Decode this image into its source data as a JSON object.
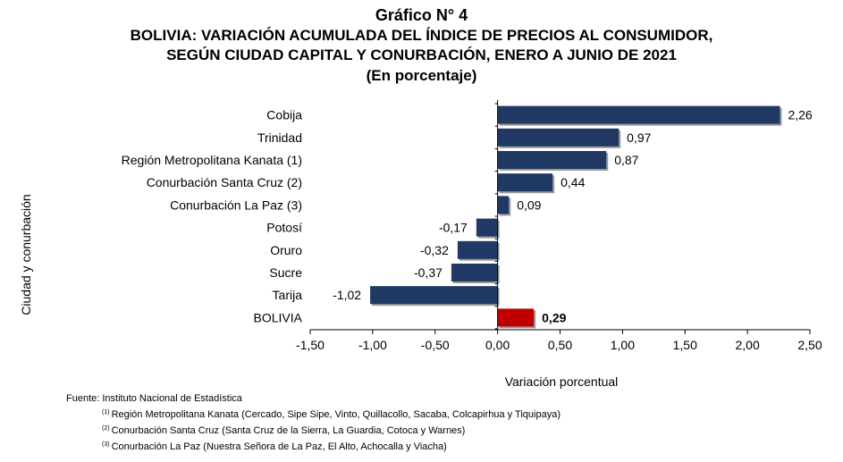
{
  "title_lines": [
    "Gráfico N° 4",
    "BOLIVIA: VARIACIÓN ACUMULADA DEL ÍNDICE DE PRECIOS AL CONSUMIDOR,",
    "SEGÚN CIUDAD CAPITAL Y CONURBACIÓN, ENERO A JUNIO DE 2021",
    "(En porcentaje)"
  ],
  "chart_data": {
    "type": "bar",
    "orientation": "horizontal",
    "categories": [
      "Cobija",
      "Trinidad",
      "Región Metropolitana Kanata (1)",
      "Conurbación Santa Cruz (2)",
      "Conurbación La Paz (3)",
      "Potosí",
      "Oruro",
      "Sucre",
      "Tarija",
      "BOLIVIA"
    ],
    "values": [
      2.26,
      0.97,
      0.87,
      0.44,
      0.09,
      -0.17,
      -0.32,
      -0.37,
      -1.02,
      0.29
    ],
    "data_labels": [
      "2,26",
      "0,97",
      "0,87",
      "0,44",
      "0,09",
      "-0,17",
      "-0,32",
      "-0,37",
      "-1,02",
      "0,29"
    ],
    "xlabel": "Variación porcentual",
    "ylabel": "Ciudad y conurbación",
    "xlim": [
      -1.5,
      2.5
    ],
    "xticks": [
      -1.5,
      -1.0,
      -0.5,
      0.0,
      0.5,
      1.0,
      1.5,
      2.0,
      2.5
    ],
    "xtick_labels": [
      "-1,50",
      "-1,00",
      "-0,50",
      "0,00",
      "0,50",
      "1,00",
      "1,50",
      "2,00",
      "2,50"
    ],
    "grid": false,
    "legend": "none",
    "bar_color": "#1f3864",
    "highlight_category": "BOLIVIA",
    "highlight_color": "#c00000"
  },
  "footer": {
    "source": "Fuente: Instituto Nacional de Estadística",
    "notes": [
      {
        "marker": "(1)",
        "text": "Región Metropolitana Kanata (Cercado, Sipe Sipe, Vinto, Quillacollo, Sacaba, Colcapirhua y Tiquipaya)"
      },
      {
        "marker": "(2)",
        "text": "Conurbación Santa Cruz (Santa Cruz de la Sierra, La Guardia, Cotoca y Warnes)"
      },
      {
        "marker": "(3)",
        "text": "Conurbación La Paz (Nuestra Señora de La Paz, El Alto, Achocalla y Viacha)"
      }
    ]
  }
}
